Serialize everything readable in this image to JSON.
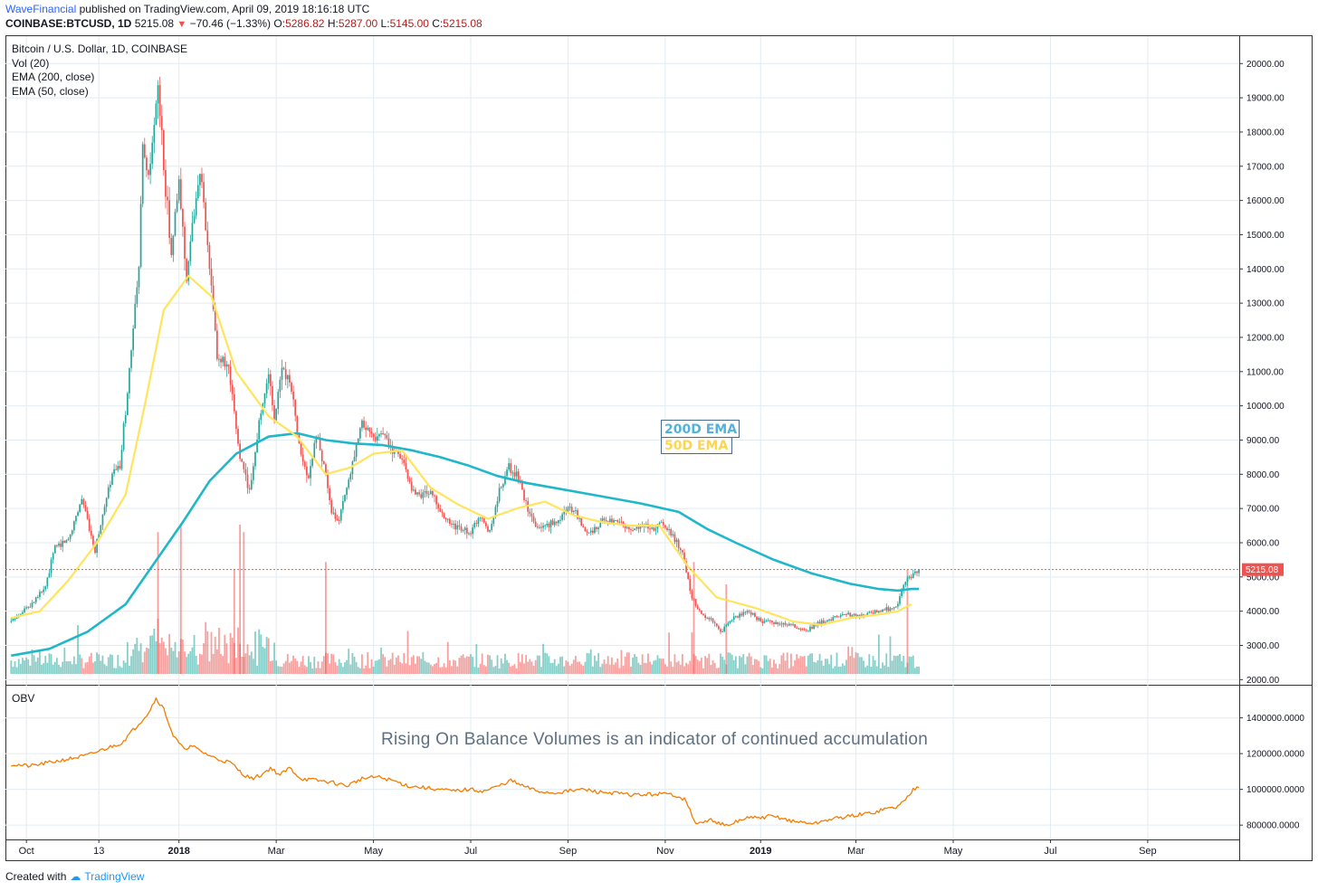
{
  "header": {
    "publisher": "WaveFinancial",
    "published_text": "published on TradingView.com, April 09, 2019 18:16:18 UTC",
    "symbol": "COINBASE:BTCUSD, 1D",
    "last": "5215.08",
    "change": "−70.46 (−1.33%)",
    "open_label": "O:",
    "open": "5286.82",
    "high_label": "H:",
    "high": "5287.00",
    "low_label": "L:",
    "low": "5145.00",
    "close_label": "C:",
    "close": "5215.08"
  },
  "legend": {
    "title": "Bitcoin / U.S. Dollar, 1D, COINBASE",
    "vol": "Vol (20)",
    "ema200": "EMA (200, close)",
    "ema50": "EMA (50, close)"
  },
  "annotations": {
    "ema200_label": "200D EMA",
    "ema50_label": "50D EMA",
    "obv_note": "Rising On Balance Volumes is an indicator of continued accumulation"
  },
  "colors": {
    "up": "#26a69a",
    "down": "#ef5350",
    "ema200": "#1fb7c9",
    "ema50": "#ffe45c",
    "obv": "#f57c00",
    "grid": "#e1ecf2",
    "price_line": "#ef5350"
  },
  "footer": {
    "created_with": "Created with",
    "brand": "TradingView",
    "logo_icon": "tradingview-logo-icon"
  },
  "chart_data": {
    "type": "line",
    "main_pane": {
      "price_axis": [
        "20000.00",
        "19000.00",
        "18000.00",
        "17000.00",
        "16000.00",
        "15000.00",
        "14000.00",
        "13000.00",
        "12000.00",
        "11000.00",
        "10000.00",
        "9000.00",
        "8000.00",
        "7000.00",
        "6000.00",
        "5000.00",
        "4000.00",
        "3000.00",
        "2000.00"
      ],
      "ylim": [
        1850,
        20800
      ],
      "last_price_label": "5215.08",
      "last_price": 5215.08,
      "close_series": [
        [
          0,
          3700
        ],
        [
          10,
          4200
        ],
        [
          18,
          4700
        ],
        [
          23,
          5900
        ],
        [
          30,
          6100
        ],
        [
          37,
          7300
        ],
        [
          44,
          5800
        ],
        [
          53,
          8000
        ],
        [
          57,
          8200
        ],
        [
          62,
          11000
        ],
        [
          67,
          14000
        ],
        [
          69,
          17500
        ],
        [
          72,
          16500
        ],
        [
          77,
          19300
        ],
        [
          80,
          17000
        ],
        [
          84,
          14500
        ],
        [
          88,
          16500
        ],
        [
          92,
          13800
        ],
        [
          99,
          17000
        ],
        [
          104,
          14000
        ],
        [
          108,
          11500
        ],
        [
          114,
          11000
        ],
        [
          120,
          8500
        ],
        [
          125,
          7500
        ],
        [
          130,
          9500
        ],
        [
          135,
          11000
        ],
        [
          138,
          9500
        ],
        [
          142,
          11200
        ],
        [
          147,
          10500
        ],
        [
          151,
          8800
        ],
        [
          156,
          7800
        ],
        [
          160,
          9200
        ],
        [
          165,
          8000
        ],
        [
          168,
          6800
        ],
        [
          172,
          6700
        ],
        [
          178,
          8000
        ],
        [
          184,
          9500
        ],
        [
          190,
          9100
        ],
        [
          195,
          9200
        ],
        [
          200,
          8700
        ],
        [
          205,
          8500
        ],
        [
          210,
          7500
        ],
        [
          215,
          7400
        ],
        [
          220,
          7500
        ],
        [
          226,
          6800
        ],
        [
          231,
          6500
        ],
        [
          236,
          6400
        ],
        [
          241,
          6300
        ],
        [
          246,
          6800
        ],
        [
          251,
          6300
        ],
        [
          256,
          7500
        ],
        [
          261,
          8200
        ],
        [
          266,
          7900
        ],
        [
          271,
          6900
        ],
        [
          276,
          6400
        ],
        [
          281,
          6500
        ],
        [
          286,
          6600
        ],
        [
          291,
          7000
        ],
        [
          296,
          6900
        ],
        [
          301,
          6300
        ],
        [
          306,
          6400
        ],
        [
          311,
          6700
        ],
        [
          316,
          6600
        ],
        [
          321,
          6500
        ],
        [
          326,
          6400
        ],
        [
          331,
          6500
        ],
        [
          336,
          6400
        ],
        [
          341,
          6600
        ],
        [
          346,
          6300
        ],
        [
          352,
          5700
        ],
        [
          357,
          4400
        ],
        [
          362,
          3900
        ],
        [
          367,
          3800
        ],
        [
          372,
          3400
        ],
        [
          377,
          3700
        ],
        [
          382,
          3900
        ],
        [
          387,
          4000
        ],
        [
          393,
          3700
        ],
        [
          398,
          3700
        ],
        [
          403,
          3650
        ],
        [
          408,
          3600
        ],
        [
          413,
          3500
        ],
        [
          418,
          3450
        ],
        [
          423,
          3650
        ],
        [
          429,
          3750
        ],
        [
          434,
          3850
        ],
        [
          439,
          3900
        ],
        [
          444,
          3850
        ],
        [
          449,
          3900
        ],
        [
          454,
          4000
        ],
        [
          459,
          4050
        ],
        [
          464,
          4100
        ],
        [
          469,
          4900
        ],
        [
          474,
          5100
        ],
        [
          476,
          5215
        ]
      ],
      "ema200_series": [
        [
          0,
          2700
        ],
        [
          20,
          2900
        ],
        [
          40,
          3400
        ],
        [
          60,
          4200
        ],
        [
          75,
          5400
        ],
        [
          90,
          6600
        ],
        [
          104,
          7800
        ],
        [
          118,
          8600
        ],
        [
          135,
          9100
        ],
        [
          150,
          9200
        ],
        [
          165,
          9000
        ],
        [
          180,
          8900
        ],
        [
          195,
          8850
        ],
        [
          210,
          8700
        ],
        [
          225,
          8500
        ],
        [
          240,
          8250
        ],
        [
          255,
          7950
        ],
        [
          270,
          7750
        ],
        [
          290,
          7550
        ],
        [
          310,
          7350
        ],
        [
          330,
          7150
        ],
        [
          350,
          6900
        ],
        [
          365,
          6400
        ],
        [
          380,
          6000
        ],
        [
          400,
          5500
        ],
        [
          420,
          5100
        ],
        [
          440,
          4800
        ],
        [
          455,
          4650
        ],
        [
          465,
          4600
        ],
        [
          472,
          4650
        ],
        [
          476,
          4650
        ]
      ],
      "ema50_series": [
        [
          0,
          3800
        ],
        [
          15,
          4000
        ],
        [
          30,
          4900
        ],
        [
          45,
          6000
        ],
        [
          60,
          7400
        ],
        [
          70,
          10000
        ],
        [
          80,
          12800
        ],
        [
          93,
          13800
        ],
        [
          105,
          13200
        ],
        [
          118,
          11000
        ],
        [
          135,
          9700
        ],
        [
          150,
          9100
        ],
        [
          165,
          8000
        ],
        [
          178,
          8200
        ],
        [
          190,
          8600
        ],
        [
          205,
          8700
        ],
        [
          220,
          7600
        ],
        [
          235,
          7100
        ],
        [
          250,
          6700
        ],
        [
          265,
          7000
        ],
        [
          280,
          7200
        ],
        [
          295,
          6800
        ],
        [
          310,
          6600
        ],
        [
          325,
          6500
        ],
        [
          340,
          6500
        ],
        [
          355,
          5300
        ],
        [
          370,
          4400
        ],
        [
          390,
          4100
        ],
        [
          410,
          3700
        ],
        [
          425,
          3600
        ],
        [
          440,
          3800
        ],
        [
          455,
          3900
        ],
        [
          465,
          4000
        ],
        [
          472,
          4200
        ]
      ],
      "volume_spikes": [
        [
          77,
          95000
        ],
        [
          89,
          100000
        ],
        [
          117,
          70000
        ],
        [
          120,
          100000
        ],
        [
          122,
          95000
        ],
        [
          165,
          75000
        ],
        [
          358,
          75000
        ],
        [
          375,
          60000
        ],
        [
          470,
          70000
        ]
      ]
    },
    "obv_pane": {
      "title": "OBV",
      "obv_axis": [
        "1400000.0000",
        "1200000.0000",
        "1000000.0000",
        "800000.0000"
      ],
      "ylim": [
        720000,
        1580000
      ],
      "series": [
        [
          0,
          1140000
        ],
        [
          10,
          1130000
        ],
        [
          20,
          1150000
        ],
        [
          30,
          1170000
        ],
        [
          40,
          1190000
        ],
        [
          50,
          1230000
        ],
        [
          58,
          1260000
        ],
        [
          63,
          1320000
        ],
        [
          68,
          1380000
        ],
        [
          72,
          1430000
        ],
        [
          76,
          1510000
        ],
        [
          80,
          1450000
        ],
        [
          85,
          1300000
        ],
        [
          90,
          1230000
        ],
        [
          95,
          1240000
        ],
        [
          100,
          1210000
        ],
        [
          108,
          1170000
        ],
        [
          115,
          1150000
        ],
        [
          121,
          1090000
        ],
        [
          126,
          1060000
        ],
        [
          131,
          1080000
        ],
        [
          136,
          1120000
        ],
        [
          141,
          1080000
        ],
        [
          146,
          1120000
        ],
        [
          152,
          1060000
        ],
        [
          160,
          1050000
        ],
        [
          168,
          1040000
        ],
        [
          176,
          1020000
        ],
        [
          184,
          1060000
        ],
        [
          192,
          1070000
        ],
        [
          200,
          1050000
        ],
        [
          208,
          1020000
        ],
        [
          216,
          1010000
        ],
        [
          224,
          1000000
        ],
        [
          232,
          990000
        ],
        [
          240,
          1000000
        ],
        [
          248,
          990000
        ],
        [
          256,
          1020000
        ],
        [
          262,
          1050000
        ],
        [
          268,
          1020000
        ],
        [
          276,
          990000
        ],
        [
          284,
          980000
        ],
        [
          292,
          990000
        ],
        [
          300,
          1000000
        ],
        [
          308,
          985000
        ],
        [
          316,
          980000
        ],
        [
          324,
          970000
        ],
        [
          332,
          970000
        ],
        [
          340,
          975000
        ],
        [
          348,
          970000
        ],
        [
          354,
          940000
        ],
        [
          358,
          820000
        ],
        [
          362,
          810000
        ],
        [
          367,
          830000
        ],
        [
          372,
          810000
        ],
        [
          376,
          790000
        ],
        [
          380,
          820000
        ],
        [
          386,
          840000
        ],
        [
          392,
          840000
        ],
        [
          398,
          850000
        ],
        [
          404,
          840000
        ],
        [
          410,
          820000
        ],
        [
          416,
          815000
        ],
        [
          422,
          810000
        ],
        [
          428,
          830000
        ],
        [
          434,
          840000
        ],
        [
          440,
          850000
        ],
        [
          446,
          860000
        ],
        [
          452,
          870000
        ],
        [
          458,
          890000
        ],
        [
          464,
          900000
        ],
        [
          469,
          940000
        ],
        [
          473,
          1000000
        ],
        [
          476,
          1020000
        ]
      ]
    },
    "x_axis": {
      "labels": [
        {
          "text": "Oct",
          "bold": false,
          "day": 8
        },
        {
          "text": "13",
          "bold": false,
          "day": 46
        },
        {
          "text": "2018",
          "bold": true,
          "day": 88
        },
        {
          "text": "Mar",
          "bold": false,
          "day": 139
        },
        {
          "text": "May",
          "bold": false,
          "day": 190
        },
        {
          "text": "Jul",
          "bold": false,
          "day": 241
        },
        {
          "text": "Sep",
          "bold": false,
          "day": 292
        },
        {
          "text": "Nov",
          "bold": false,
          "day": 343
        },
        {
          "text": "2019",
          "bold": true,
          "day": 393
        },
        {
          "text": "Mar",
          "bold": false,
          "day": 443
        },
        {
          "text": "May",
          "bold": false,
          "day": 494
        },
        {
          "text": "Jul",
          "bold": false,
          "day": 545
        },
        {
          "text": "Sep",
          "bold": false,
          "day": 596
        }
      ],
      "xlim": [
        -3,
        644
      ]
    }
  }
}
